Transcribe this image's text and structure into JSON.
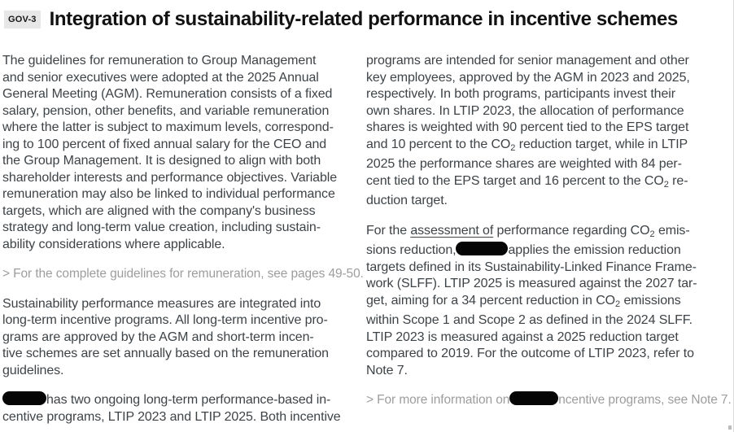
{
  "colors": {
    "body_text": "#3e4347",
    "title_text": "#121212",
    "tag_background": "#e7e7e7",
    "link_text": "#9d9d9f",
    "redaction": "#050505"
  },
  "header": {
    "tag": "GOV-3",
    "title": "Integration of sustainability-related performance in incentive schemes"
  },
  "columns": {
    "left": {
      "para1": {
        "lines": [
          [
            {
              "t": "The guidelines for remuneration to Group Management"
            }
          ],
          [
            {
              "t": "and senior executives were adopted at the 2025 Annual"
            }
          ],
          [
            {
              "t": "General Meeting (AGM). Remuneration consists of a fixed"
            }
          ],
          [
            {
              "t": "salary, pension, other benefits, and variable remuneration"
            }
          ],
          [
            {
              "t": "where the latter is subject to maximum levels, correspond-"
            }
          ],
          [
            {
              "t": "ing to 100 percent of fixed annual salary for the CEO and"
            }
          ],
          [
            {
              "t": "the Group Management. It is designed to align with both"
            }
          ],
          [
            {
              "t": "shareholder interests and performance objectives. Variable"
            }
          ],
          [
            {
              "t": "remuneration may also be linked to individual performance"
            }
          ],
          [
            {
              "t": "targets, which are aligned with the company's business"
            }
          ],
          [
            {
              "t": "strategy and long-term value creation, including sustain-"
            }
          ],
          [
            {
              "t": "ability considerations where applicable."
            }
          ]
        ]
      },
      "link1": {
        "lines": [
          [
            {
              "t": "> For the complete guidelines for remuneration, see pages 49-50."
            }
          ]
        ]
      },
      "para2": {
        "lines": [
          [
            {
              "t": "Sustainability performance measures are integrated into"
            }
          ],
          [
            {
              "t": "long-term incentive programs. All long-term incentive pro-"
            }
          ],
          [
            {
              "t": "grams are approved by the AGM and short-term incen-"
            }
          ],
          [
            {
              "t": "tive schemes are set annually based on the remuneration"
            }
          ],
          [
            {
              "t": "guidelines."
            }
          ]
        ]
      },
      "para3": {
        "lines": [
          [
            {
              "redact": 54
            },
            {
              "t": "has two ongoing long-term performance-based in-"
            }
          ],
          [
            {
              "t": "centive programs, LTIP 2023 and LTIP 2025. Both incentive"
            }
          ]
        ]
      }
    },
    "right": {
      "para1": {
        "lines": [
          [
            {
              "t": "programs are intended for senior management and other"
            }
          ],
          [
            {
              "t": "key employees, approved by the AGM in 2023 and 2025,"
            }
          ],
          [
            {
              "t": "respectively. In both programs, participants invest their"
            }
          ],
          [
            {
              "t": "own shares. In LTIP 2023, the allocation of performance"
            }
          ],
          [
            {
              "t": "shares is weighted with 90 percent tied to the EPS target"
            }
          ],
          [
            {
              "t": "and 10 percent to the CO"
            },
            {
              "t": "2",
              "sub": true
            },
            {
              "t": " reduction target, while in LTIP"
            }
          ],
          [
            {
              "t": "2025 the performance shares are weighted with 84 per-"
            }
          ],
          [
            {
              "t": "cent tied to the EPS target and 16 percent to the CO"
            },
            {
              "t": "2",
              "sub": true
            },
            {
              "t": " re-"
            }
          ],
          [
            {
              "t": "duction target."
            }
          ]
        ]
      },
      "para2": {
        "lines": [
          [
            {
              "t": "For the "
            },
            {
              "t": "assessment of",
              "u": true
            },
            {
              "t": " performance regarding CO"
            },
            {
              "t": "2",
              "sub": true
            },
            {
              "t": " emis-"
            }
          ],
          [
            {
              "t": "sions reduction,"
            },
            {
              "redact": 64
            },
            {
              "t": "applies the emission reduction"
            }
          ],
          [
            {
              "t": "targets defined in its Sustainability-Linked Finance Frame-"
            }
          ],
          [
            {
              "t": "work (SLFF). LTIP 2025 is measured against the 2027 tar-"
            }
          ],
          [
            {
              "t": "get, aiming for a 34 percent reduction in CO"
            },
            {
              "t": "2",
              "sub": true
            },
            {
              "t": " emissions"
            }
          ],
          [
            {
              "t": "within Scope 1 and Scope 2 as defined in the 2024 SLFF."
            }
          ],
          [
            {
              "t": "LTIP 2023 is measured against a 2025 reduction target"
            }
          ],
          [
            {
              "t": "compared to 2019. For the outcome of LTIP 2023, refer to"
            }
          ],
          [
            {
              "t": "Note 7."
            }
          ]
        ]
      },
      "link2": {
        "lines": [
          [
            {
              "t": "> For more information on"
            },
            {
              "redact": 60
            },
            {
              "t": "ncentive programs, see Note 7."
            }
          ]
        ]
      }
    }
  }
}
